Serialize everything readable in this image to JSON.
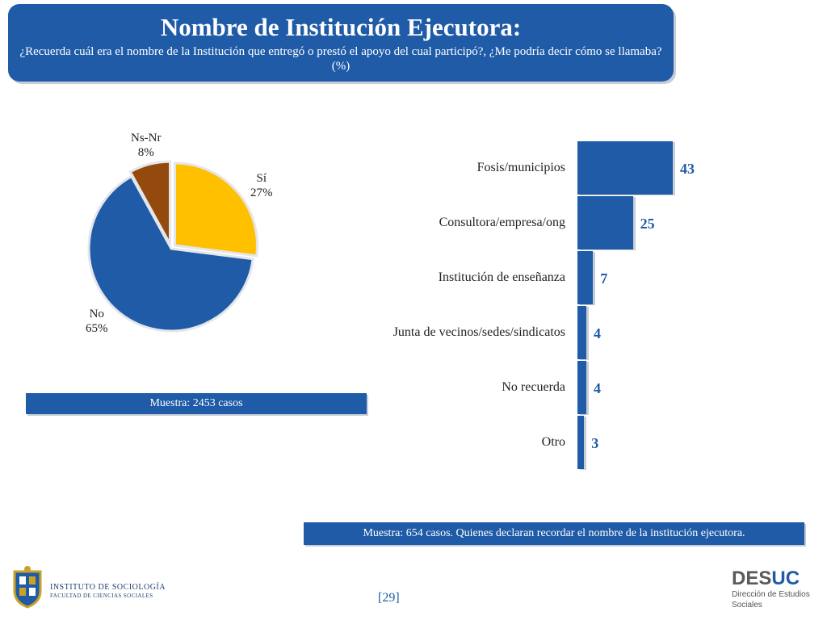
{
  "header": {
    "title": "Nombre de Institución Ejecutora:",
    "subtitle": "¿Recuerda cuál era el nombre de la Institución que entregó o prestó el apoyo del cual participó?, ¿Me podría decir cómo se llamaba? (%)"
  },
  "chart_data": [
    {
      "type": "pie",
      "title": "",
      "slices": [
        {
          "name": "Sí",
          "value": 27,
          "label": "27%",
          "color": "#ffc000"
        },
        {
          "name": "No",
          "value": 65,
          "label": "65%",
          "color": "#1f5ba7"
        },
        {
          "name": "Ns-Nr",
          "value": 8,
          "label": "8%",
          "color": "#944a0c"
        }
      ]
    },
    {
      "type": "bar",
      "orientation": "horizontal",
      "title": "",
      "categories": [
        "Fosis/municipios",
        "Consultora/empresa/ong",
        "Institución de enseñanza",
        "Junta de vecinos/sedes/sindicatos",
        "No recuerda",
        "Otro"
      ],
      "values": [
        43,
        25,
        7,
        4,
        4,
        3
      ],
      "color": "#1f5ba7"
    }
  ],
  "notes": {
    "pie_sample": "Muestra: 2453 casos",
    "bar_sample": "Muestra: 654 casos. Quienes declaran recordar el nombre de la institución ejecutora."
  },
  "footer": {
    "institute_name": "INSTITUTO DE SOCIOLOGÍA",
    "institute_faculty": "FACULTAD DE CIENCIAS SOCIALES",
    "page_number": "[29]",
    "brand_main": "DES",
    "brand_accent": "UC",
    "brand_sub_line1": "Dirección de Estudios",
    "brand_sub_line2": "Sociales"
  }
}
